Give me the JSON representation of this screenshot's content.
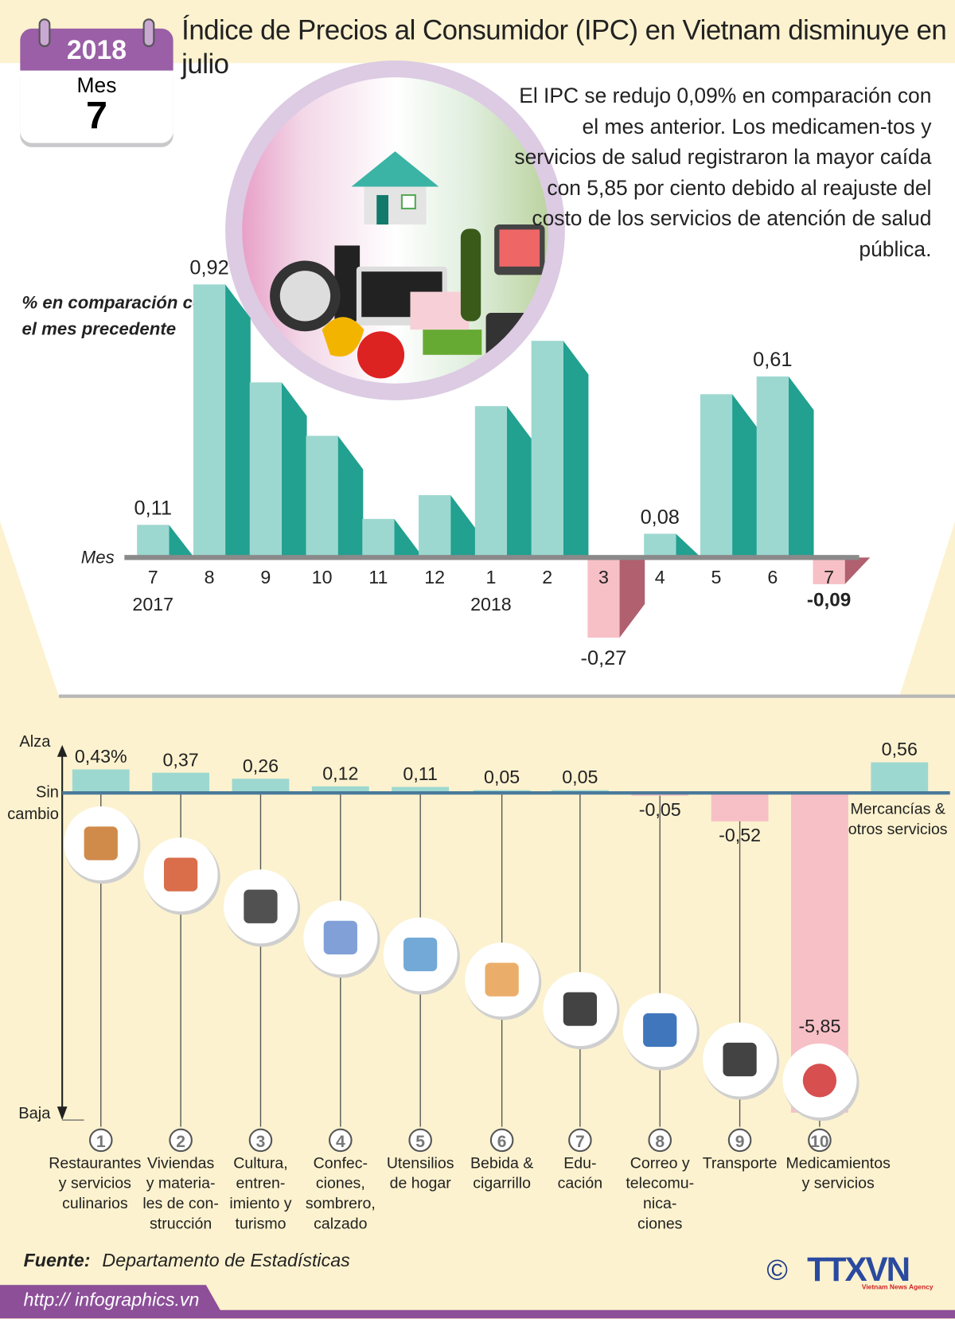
{
  "header": {
    "title": "Índice de Precios al Consumidor (IPC) en Vietnam disminuye en julio",
    "calendar": {
      "year": "2018",
      "month_label": "Mes",
      "month": "7"
    }
  },
  "description": "El IPC se redujo 0,09% en comparación con el mes anterior. Los medicamen-tos y servicios de salud registraron la mayor caída con 5,85 por ciento debido al reajuste del costo de los servicios de atención de salud pública.",
  "colors": {
    "positive_front": "#9dd8d0",
    "positive_side": "#22a090",
    "negative_front": "#f7c0c6",
    "negative_side": "#b0606f",
    "purple": "#9a5fa6",
    "background": "#fcf2cf"
  },
  "chart_data": [
    {
      "type": "bar",
      "title": "",
      "ylabel": "% en comparación con el mes precedente",
      "xlabel": "Mes",
      "categories": [
        "7",
        "8",
        "9",
        "10",
        "11",
        "12",
        "1",
        "2",
        "3",
        "4",
        "5",
        "6",
        "7"
      ],
      "year_labels": [
        {
          "index": 0,
          "label": "2017"
        },
        {
          "index": 6,
          "label": "2018"
        }
      ],
      "values": [
        0.11,
        0.92,
        0.59,
        0.41,
        0.13,
        0.21,
        0.51,
        0.73,
        -0.27,
        0.08,
        0.55,
        0.61,
        -0.09
      ],
      "data_labels": [
        "0,11",
        "0,92",
        "",
        "",
        "",
        "",
        "",
        "",
        "-0,27",
        "0,08",
        "",
        "0,61",
        "-0,09"
      ],
      "highlight_index": 12,
      "ylim": [
        -0.3,
        1.0
      ],
      "grid": false
    },
    {
      "type": "bar",
      "title": "",
      "ylabel_top": "Alza",
      "ylabel_mid": "Sin cambio",
      "ylabel_bottom": "Baja",
      "categories": [
        "Restaurantes y servicios culinarios",
        "Viviendas y materia-les de con-strucción",
        "Cultura, entren-imiento y turismo",
        "Confec-ciones, sombrero, calzado",
        "Utensilios de hogar",
        "Bebida & cigarrillo",
        "Edu-cación",
        "Correo y telecomu-nica-ciones",
        "Transporte",
        "Medicamientos y servicios",
        "Mercancías & otros servicios"
      ],
      "numbers": [
        "1",
        "2",
        "3",
        "4",
        "5",
        "6",
        "7",
        "8",
        "9",
        "10",
        ""
      ],
      "values": [
        0.43,
        0.37,
        0.26,
        0.12,
        0.11,
        0.05,
        0.05,
        -0.05,
        -0.52,
        -5.85,
        0.56
      ],
      "data_labels": [
        "0,43%",
        "0,37",
        "0,26",
        "0,12",
        "0,11",
        "0,05",
        "0,05",
        "-0,05",
        "-0,52",
        "-5,85",
        "0,56"
      ],
      "icons": [
        "meal-icon",
        "house-icon",
        "clapperboard-icon",
        "clothes-shoes-icon",
        "washing-machine-icon",
        "drink-cigarette-icon",
        "graduation-cap-icon",
        "antenna-icon",
        "traffic-light-icon",
        "pills-icon",
        ""
      ],
      "grid": false
    }
  ],
  "footer": {
    "source_label": "Fuente:",
    "source": "Departamento de Estadísticas",
    "url": "http:// infographics.vn",
    "copyright": "©",
    "logo": "TTXVN",
    "logo_sub": "Vietnam News Agency"
  }
}
